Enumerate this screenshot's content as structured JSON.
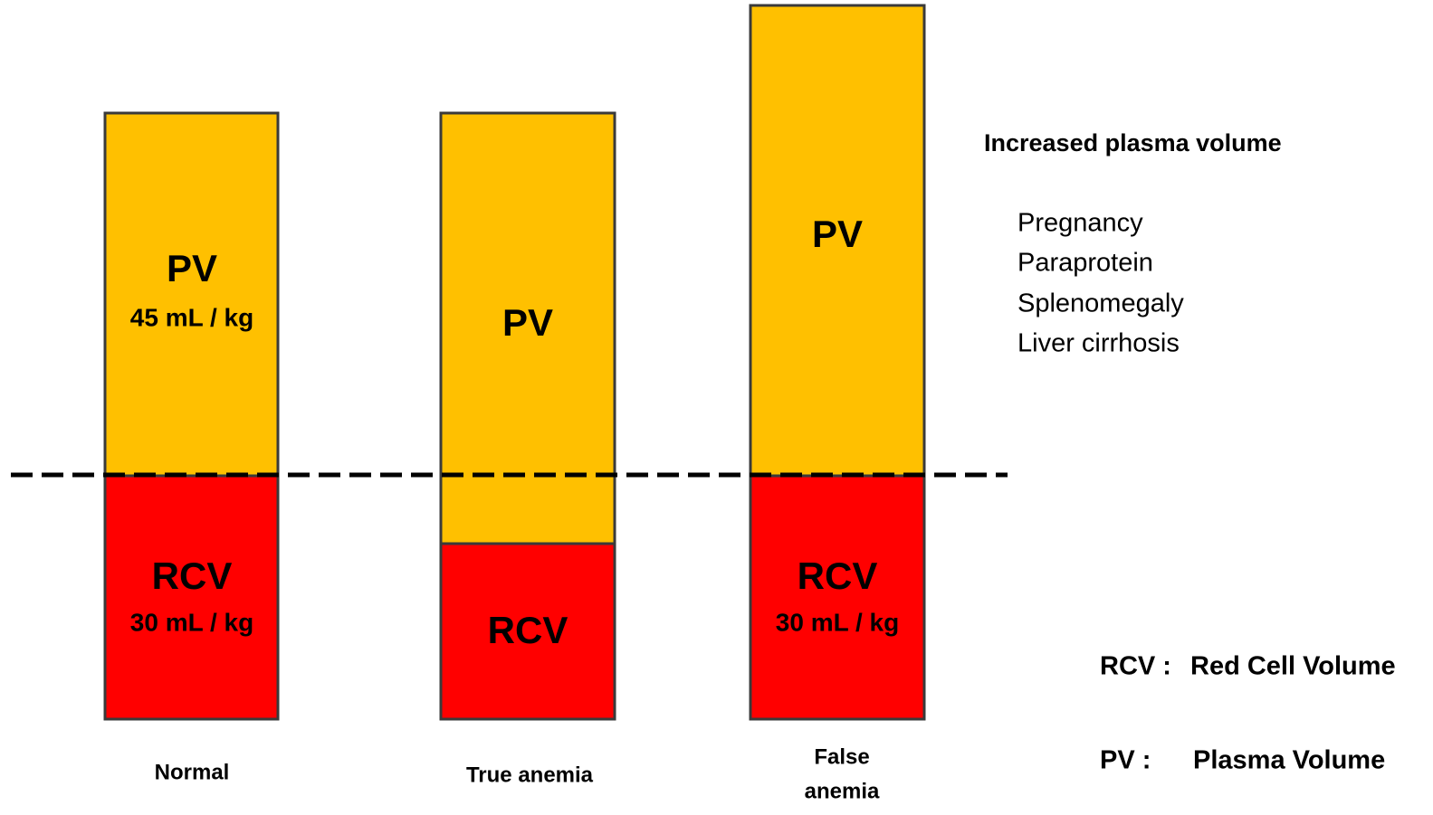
{
  "columns": [
    {
      "label_lines": [
        "Normal"
      ],
      "pv": {
        "label": "PV",
        "detail": "45 mL / kg"
      },
      "rcv": {
        "label": "RCV",
        "detail": "30 mL / kg"
      }
    },
    {
      "label_lines": [
        "True anemia"
      ],
      "pv": {
        "label": "PV"
      },
      "rcv": {
        "label": "RCV"
      }
    },
    {
      "label_lines": [
        "False",
        "anemia"
      ],
      "pv": {
        "label": "PV"
      },
      "rcv": {
        "label": "RCV",
        "detail": "30 mL / kg"
      }
    }
  ],
  "note": {
    "title": "Increased plasma volume",
    "items": [
      "Pregnancy",
      "Paraprotein",
      "Splenomegaly",
      "Liver cirrhosis"
    ]
  },
  "legend": [
    {
      "abbr": "RCV :",
      "text": "Red Cell Volume"
    },
    {
      "abbr": "PV :",
      "text": "Plasma Volume"
    }
  ]
}
